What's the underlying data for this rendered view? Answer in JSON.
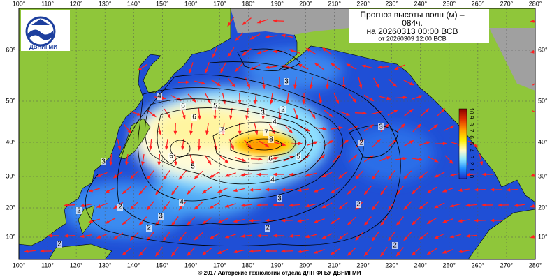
{
  "header": {
    "title_line1": "Прогноз высоты волн (м) –",
    "title_line2": "084ч.",
    "valid_time": "на 20260313 00:00 ВСВ",
    "issued_time": "от 20260309 12:00 ВСВ"
  },
  "logo": {
    "label": "ДВНИГМИ"
  },
  "map": {
    "lon_labels": [
      "100°",
      "110°",
      "120°",
      "130°",
      "140°",
      "150°",
      "160°",
      "170°",
      "180°",
      "190°",
      "200°",
      "210°",
      "220°",
      "230°",
      "240°",
      "250°",
      "260°",
      "270°",
      "280°"
    ],
    "lat_labels": [
      "60°",
      "50°",
      "40°",
      "30°",
      "20°",
      "10°"
    ],
    "contour_labels": [
      "4",
      "6",
      "5",
      "6",
      "3",
      "4",
      "2",
      "7",
      "7",
      "8",
      "6",
      "5",
      "6",
      "5",
      "4",
      "3",
      "3",
      "3",
      "2",
      "2",
      "4",
      "3",
      "2",
      "2",
      "3",
      "2",
      "2",
      "2",
      "2"
    ]
  },
  "colorbar": {
    "labels": [
      "10",
      "9",
      "8",
      "7",
      "6",
      "5",
      "4",
      "3",
      "2",
      "1",
      "0"
    ]
  },
  "footer": {
    "copyright": "© 2017 Авторские технологии отдела ДЛП ФГБУ ДВНИГМИ"
  }
}
